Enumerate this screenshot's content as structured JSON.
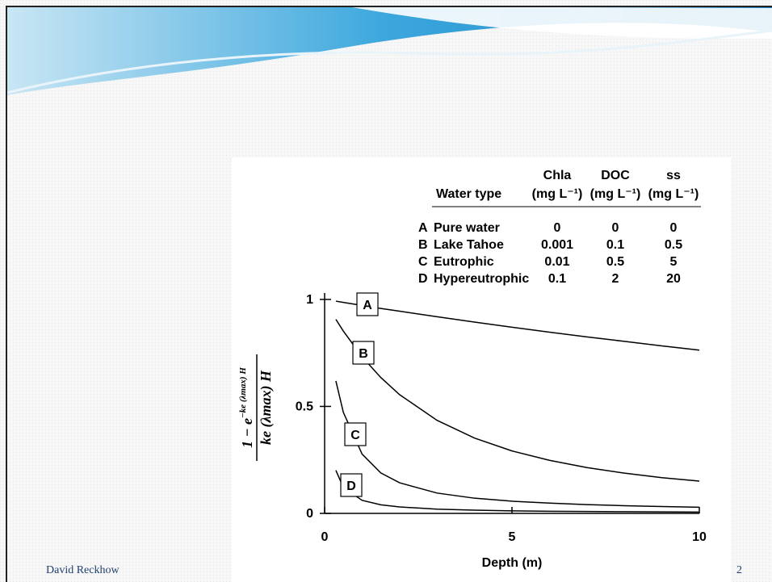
{
  "slide": {
    "footer": "David Reckhow",
    "page": "2"
  },
  "chart_data": {
    "type": "line",
    "x_label": "Depth (m)",
    "y_label": {
      "numerator": "1 − e",
      "exponent": "−ke (λmax) H",
      "denominator": "ke (λmax) H"
    },
    "x": [
      0.3,
      0.5,
      1,
      1.5,
      2,
      3,
      4,
      5,
      6,
      7,
      8,
      9,
      10
    ],
    "series": [
      {
        "name": "A",
        "color": "#000000",
        "values": [
          0.992,
          0.986,
          0.972,
          0.958,
          0.945,
          0.919,
          0.894,
          0.87,
          0.847,
          0.825,
          0.804,
          0.783,
          0.763
        ]
      },
      {
        "name": "B",
        "color": "#000000",
        "values": [
          0.907,
          0.852,
          0.732,
          0.635,
          0.555,
          0.435,
          0.352,
          0.292,
          0.248,
          0.214,
          0.188,
          0.167,
          0.151
        ]
      },
      {
        "name": "C",
        "color": "#000000",
        "values": [
          0.619,
          0.472,
          0.277,
          0.189,
          0.143,
          0.095,
          0.071,
          0.057,
          0.048,
          0.041,
          0.036,
          0.032,
          0.029
        ]
      },
      {
        "name": "D",
        "color": "#000000",
        "values": [
          0.201,
          0.121,
          0.061,
          0.04,
          0.03,
          0.02,
          0.015,
          0.012,
          0.01,
          0.009,
          0.008,
          0.007,
          0.006
        ]
      }
    ],
    "xlim": [
      0,
      10
    ],
    "xticks": [
      0,
      5,
      10
    ],
    "ylim": [
      0,
      1.03
    ],
    "yticks": [
      0,
      0.5,
      1
    ],
    "table": {
      "columns": [
        "Water type",
        "Chla",
        "DOC",
        "ss"
      ],
      "units": [
        "(mg L⁻¹)",
        "(mg L⁻¹)",
        "(mg L⁻¹)"
      ],
      "rows": [
        [
          "A",
          "Pure water",
          0,
          0,
          0
        ],
        [
          "B",
          "Lake Tahoe",
          0.001,
          0.1,
          0.5
        ],
        [
          "C",
          "Eutrophic",
          0.01,
          0.5,
          5
        ],
        [
          "D",
          "Hypereutrophic",
          0.1,
          2,
          20
        ]
      ]
    }
  }
}
